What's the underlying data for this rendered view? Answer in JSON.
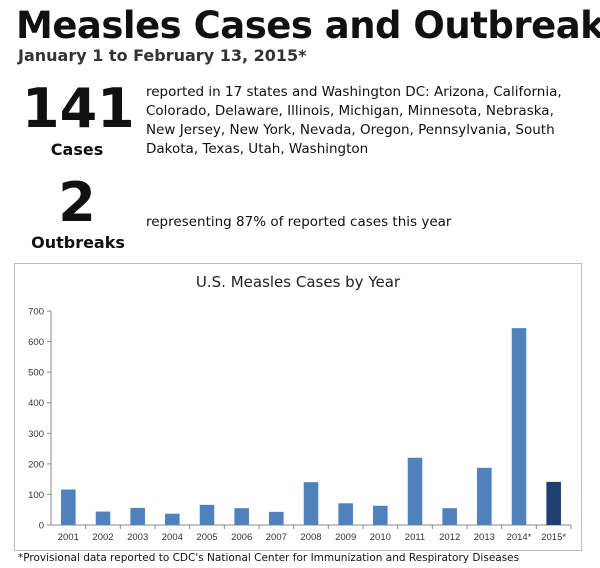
{
  "header": {
    "title": "Measles Cases and Outbreaks",
    "subtitle": "January 1 to February 13, 2015*"
  },
  "stats": [
    {
      "value": "141",
      "label": "Cases",
      "text": "reported in 17 states and Washington DC: Arizona, California, Colorado, Delaware, Illinois, Michigan, Minnesota, Nebraska, New Jersey, New York, Nevada, Oregon, Pennsylvania, South Dakota, Texas, Utah, Washington"
    },
    {
      "value": "2",
      "label": "Outbreaks",
      "text": "representing 87% of reported cases this year"
    }
  ],
  "chart_data": {
    "type": "bar",
    "title": "U.S. Measles Cases by Year",
    "xlabel": "",
    "ylabel": "",
    "categories": [
      "2001",
      "2002",
      "2003",
      "2004",
      "2005",
      "2006",
      "2007",
      "2008",
      "2009",
      "2010",
      "2011",
      "2012",
      "2013",
      "2014*",
      "2015*"
    ],
    "values": [
      116,
      44,
      56,
      37,
      66,
      55,
      43,
      140,
      71,
      63,
      220,
      55,
      187,
      644,
      141
    ],
    "ylim": [
      0,
      700
    ],
    "yticks": [
      0,
      100,
      200,
      300,
      400,
      500,
      600,
      700
    ],
    "grid": false,
    "legend": "none",
    "colors": {
      "bar": "#4f81bd",
      "highlight_bar": "#1f3f6f",
      "axis": "#888888",
      "tick_label": "#333333"
    },
    "highlight_index": 14
  },
  "footnote": "*Provisional data reported to CDC's National Center for Immunization and Respiratory Diseases"
}
